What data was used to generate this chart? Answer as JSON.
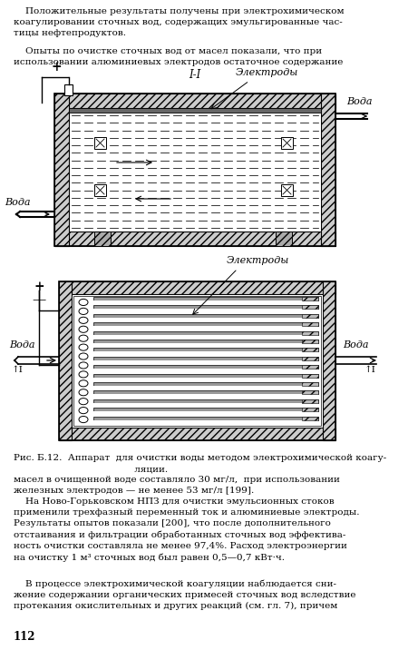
{
  "bg_color": "#ffffff",
  "text_color": "#000000",
  "top_paragraph1": "    Положительные результаты получены при электрохимическом\nкоагулировании сточных вод, содержащих эмульгированные час-\nтицы нефтепродуктов.",
  "top_paragraph2": "    Опыты по очистке сточных вод от масел показали, что при\nиспользовании алюминиевых электродов остаточное содержание",
  "caption": "Рис. Б.12.  Аппарат  для очистки воды методом электрохимической коагу-\n                                         ляции.",
  "bottom_paragraph1": "масел в очищенной воде составляло 30 мг/л,  при использовании\nжелезных электродов — не менее 53 мг/л [199].",
  "bottom_paragraph2": "    На Ново-Горьковском НПЗ для очистки эмульсионных стоков\nприменили трехфазный переменный ток и алюминиевые электроды.\nРезультаты опытов показали [200], что после дополнительного\nотстаивания и фильтрации обработанных сточных вод эффектива-\nность очистки составляла не менее 97,4%. Расход электроэнергии\nна очистку 1 м³ сточных вод был равен 0,5—0,7 кВт·ч.",
  "bottom_paragraph3": "    В процессе электрохимической коагуляции наблюдается сни-\nжение содержании органических примесей сточных вод вследствие\nпротекания окислительных и других реакций (см. гл. 7), причем",
  "page_number": "112",
  "d1_label_ii": "I-I",
  "d1_label_electrodes": "Электроды",
  "d1_label_water_right": "Вода",
  "d1_label_water_left": "Вода",
  "d1_label_plus": "+",
  "d2_label_electrodes": "Электроды",
  "d2_label_water_left": "Вода",
  "d2_label_water_right": "Вода",
  "d2_label_plus": "+",
  "d2_label_minus": "—",
  "d2_label_I_left": "↑I",
  "d2_label_I_right": "↑I"
}
